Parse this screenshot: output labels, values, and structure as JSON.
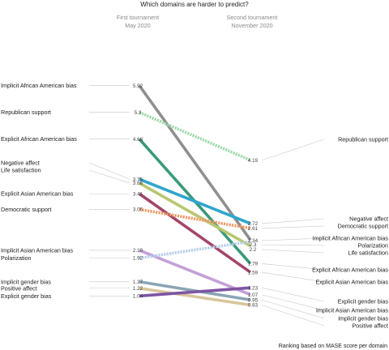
{
  "chart_data": {
    "type": "line",
    "title": "Which domains are harder to predict?",
    "columns": [
      {
        "line1": "First tournament",
        "line2": "May 2020"
      },
      {
        "line1": "Second tournament",
        "line2": "November 2020"
      }
    ],
    "footnote": "Ranking based on MASE score per domain",
    "series": [
      {
        "name": "Implicit African American bias",
        "first": 5.92,
        "second": 2.34,
        "first_label": "5.92",
        "second_label": "2.34",
        "color": "#8f8f8f",
        "dashed": false
      },
      {
        "name": "Republican support",
        "first": 5.3,
        "second": 4.19,
        "first_label": "5.3",
        "second_label": "4.19",
        "color": "#9fd9a9",
        "dashed": true
      },
      {
        "name": "Explicit African American bias",
        "first": 4.68,
        "second": 1.79,
        "first_label": "4.68",
        "second_label": "1.79",
        "color": "#3a9a78",
        "dashed": false
      },
      {
        "name": "Negative affect",
        "first": 3.75,
        "second": 2.72,
        "first_label": "3.75",
        "second_label": "2.72",
        "color": "#2fa6cc",
        "dashed": false
      },
      {
        "name": "Life satisfaction",
        "first": 3.66,
        "second": 2.2,
        "first_label": "3.66",
        "second_label": "2.2",
        "color": "#b9c670",
        "dashed": false
      },
      {
        "name": "Explicit Asian American bias",
        "first": 3.41,
        "second": 1.59,
        "first_label": "3.41",
        "second_label": "1.59",
        "color": "#a3456a",
        "dashed": false
      },
      {
        "name": "Democratic support",
        "first": 3.05,
        "second": 2.61,
        "first_label": "3.05",
        "second_label": "2.61",
        "color": "#ef9a66",
        "dashed": true
      },
      {
        "name": "Implicit Asian American bias",
        "first": 2.1,
        "second": 1.07,
        "first_label": "2.10",
        "second_label": "1.07",
        "color": "#c3a1d6",
        "dashed": false
      },
      {
        "name": "Polarization",
        "first": 1.92,
        "second": 2.3,
        "first_label": "1.92",
        "second_label": "2.3",
        "color": "#b8cfe8",
        "dashed": true
      },
      {
        "name": "Implicit gender bias",
        "first": 1.37,
        "second": 0.95,
        "first_label": "1.37",
        "second_label": "0.95",
        "color": "#8aa5b5",
        "dashed": false
      },
      {
        "name": "Positive affect",
        "first": 1.22,
        "second": 0.83,
        "first_label": "1.22",
        "second_label": "0.83",
        "color": "#d9c59c",
        "dashed": false
      },
      {
        "name": "Explicit gender bias",
        "first": 1.04,
        "second": 1.23,
        "first_label": "1.04",
        "second_label": "1.23",
        "color": "#7e55a3",
        "dashed": false
      }
    ]
  }
}
